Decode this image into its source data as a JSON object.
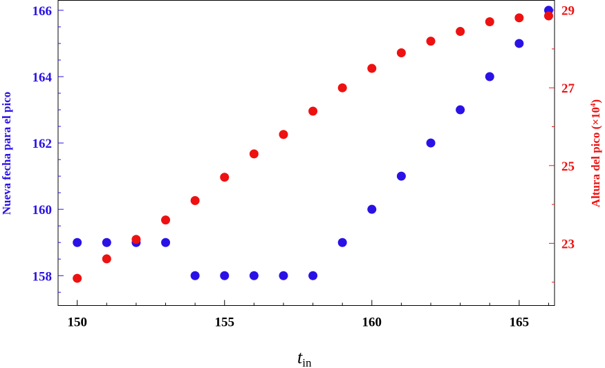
{
  "chart_data": {
    "type": "scatter",
    "x": [
      150,
      151,
      152,
      153,
      154,
      155,
      156,
      157,
      158,
      159,
      160,
      161,
      162,
      163,
      164,
      165,
      166
    ],
    "series": [
      {
        "axis": "left",
        "color": "#2a12e6",
        "values": [
          159,
          159,
          159,
          159,
          158,
          158,
          158,
          158,
          158,
          159,
          160,
          161,
          162,
          163,
          164,
          165,
          166
        ]
      },
      {
        "axis": "right",
        "color": "#ee1111",
        "values": [
          22.1,
          22.6,
          23.1,
          23.6,
          24.1,
          24.7,
          25.3,
          25.8,
          26.4,
          27.0,
          27.5,
          27.9,
          28.2,
          28.45,
          28.7,
          28.8,
          28.85
        ]
      }
    ],
    "xlim": [
      149.35,
      166.2
    ],
    "ylim_left": [
      157.1,
      166.3
    ],
    "ylim_right": [
      21.4,
      29.25
    ],
    "x_ticks": [
      "150",
      "155",
      "160",
      "165"
    ],
    "y_ticks_left": [
      "158",
      "160",
      "162",
      "164",
      "166"
    ],
    "y_ticks_right": [
      "23",
      "25",
      "27",
      "29"
    ],
    "xlabel_main": "t",
    "xlabel_sub": "in",
    "ylabel_left": "Nueva fecha para el pico",
    "ylabel_right_prefix": "Altura del pico (×10",
    "ylabel_right_sup": "4",
    "ylabel_right_suffix": ")",
    "left_axis_color": "#2a12e6",
    "right_axis_color": "#ee1111",
    "grid": false
  }
}
